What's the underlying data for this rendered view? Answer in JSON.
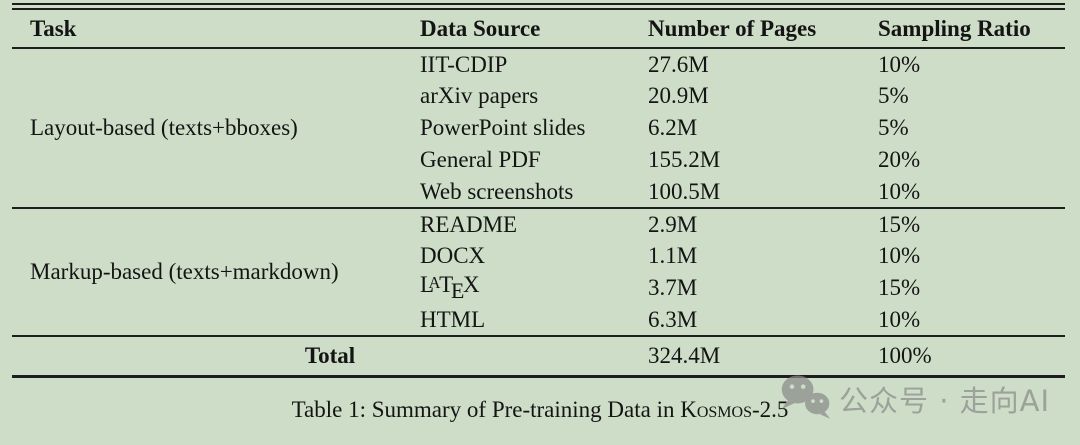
{
  "page": {
    "background_color": "#cdddc7",
    "text_color": "#141414",
    "rule_color": "#1d1d1d"
  },
  "table": {
    "columns": [
      "Task",
      "Data Source",
      "Number of Pages",
      "Sampling Ratio"
    ],
    "groups": [
      {
        "task": "Layout-based (texts+bboxes)",
        "rows": [
          {
            "source": "IIT-CDIP",
            "pages": "27.6M",
            "ratio": "10%"
          },
          {
            "source": "arXiv papers",
            "pages": "20.9M",
            "ratio": "5%"
          },
          {
            "source": "PowerPoint slides",
            "pages": "6.2M",
            "ratio": "5%"
          },
          {
            "source": "General PDF",
            "pages": "155.2M",
            "ratio": "20%"
          },
          {
            "source": "Web screenshots",
            "pages": "100.5M",
            "ratio": "10%"
          }
        ]
      },
      {
        "task": "Markup-based (texts+markdown)",
        "rows": [
          {
            "source": "README",
            "pages": "2.9M",
            "ratio": "15%"
          },
          {
            "source": "DOCX",
            "pages": "1.1M",
            "ratio": "10%"
          },
          {
            "source": "LaTeX",
            "pages": "3.7M",
            "ratio": "15%"
          },
          {
            "source": "HTML",
            "pages": "6.3M",
            "ratio": "10%"
          }
        ]
      }
    ],
    "total_row": {
      "label": "Total",
      "pages": "324.4M",
      "ratio": "100%"
    }
  },
  "caption": {
    "prefix": "Table 1: Summary of Pre-training Data in ",
    "model_name_smallcaps": "Kosmos",
    "suffix": "-2.5"
  },
  "watermark": {
    "icon": "wechat-logo-icon",
    "text": "公众号 · 走向AI",
    "color": "#8a8a8a"
  }
}
